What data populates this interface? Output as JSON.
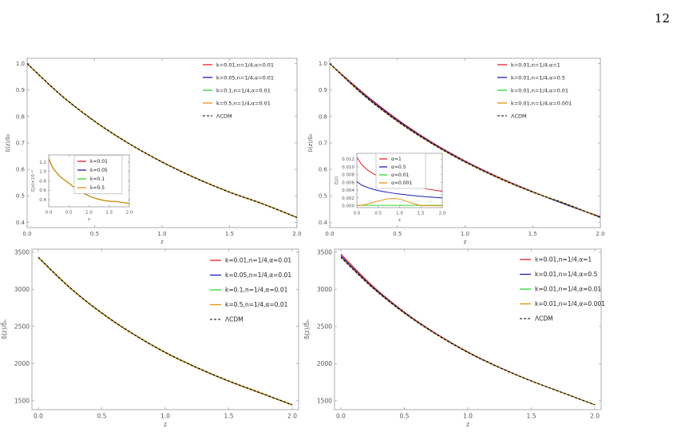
{
  "page_number": "12",
  "colors": {
    "red": "#e8202a",
    "blue": "#1c1cb4",
    "green": "#2fd62f",
    "orange": "#e8920e",
    "lcdm": "#000000",
    "axis": "#999999"
  },
  "chart_data": [
    {
      "type": "line",
      "xlabel": "z",
      "ylabel": "δ(z)/δ₀",
      "xlim": [
        0,
        2
      ],
      "ylim": [
        0.38,
        1.02
      ],
      "xticks": [
        0,
        0.5,
        1,
        1.5,
        2
      ],
      "xtick_labels": [
        "0.0",
        "0.5",
        "1.0",
        "1.5",
        "2.0"
      ],
      "yticks": [
        0.4,
        0.5,
        0.6,
        0.7,
        0.8,
        0.9,
        1.0
      ],
      "ytick_labels": [
        "0.4",
        "0.5",
        "0.6",
        "0.7",
        "0.8",
        "0.9",
        "1.0"
      ],
      "x": [
        0,
        0.25,
        0.5,
        0.75,
        1.0,
        1.25,
        1.5,
        1.75,
        2.0
      ],
      "series": [
        {
          "name": "k=0.01,n=1/4,α=0.01",
          "color": "red",
          "dashed": false,
          "values": [
            1.0,
            0.881,
            0.782,
            0.699,
            0.628,
            0.567,
            0.514,
            0.469,
            0.418
          ]
        },
        {
          "name": "k=0.05,n=1/4,α=0.01",
          "color": "blue",
          "dashed": false,
          "values": [
            1.0,
            0.881,
            0.782,
            0.699,
            0.628,
            0.567,
            0.514,
            0.469,
            0.418
          ]
        },
        {
          "name": "k=0.1,n=1/4,α=0.01",
          "color": "green",
          "dashed": false,
          "values": [
            1.0,
            0.881,
            0.782,
            0.699,
            0.628,
            0.567,
            0.514,
            0.469,
            0.418
          ]
        },
        {
          "name": "k=0.5,n=1/4,α=0.01",
          "color": "orange",
          "dashed": false,
          "values": [
            1.0,
            0.881,
            0.782,
            0.699,
            0.628,
            0.567,
            0.514,
            0.469,
            0.418
          ]
        },
        {
          "name": "ΛCDM",
          "color": "lcdm",
          "dashed": true,
          "values": [
            1.0,
            0.881,
            0.782,
            0.699,
            0.628,
            0.567,
            0.514,
            0.469,
            0.418
          ]
        }
      ],
      "inset": {
        "type": "line",
        "xlabel": "z",
        "ylabel": "ζ(z)×10⁻⁴",
        "xlim": [
          0,
          2
        ],
        "ylim": [
          0.25,
          1.35
        ],
        "xticks": [
          0,
          0.5,
          1,
          1.5,
          2
        ],
        "xtick_labels": [
          "0.0",
          "0.5",
          "1.0",
          "1.5",
          "2.0"
        ],
        "yticks": [
          0.4,
          0.6,
          0.8,
          1.0,
          1.2
        ],
        "ytick_labels": [
          "0.4",
          "0.6",
          "0.8",
          "1.0",
          "1.2"
        ],
        "x": [
          0,
          0.1,
          0.2,
          0.3,
          0.5,
          0.7,
          1.0,
          1.2,
          1.4,
          1.5,
          1.7,
          2.0
        ],
        "series": [
          {
            "name": "k=0.01",
            "color": "red",
            "values": [
              1.28,
              1.08,
              0.97,
              0.88,
              0.75,
              0.62,
              0.48,
              0.42,
              0.38,
              0.37,
              0.36,
              0.32
            ]
          },
          {
            "name": "k=0.05",
            "color": "blue",
            "values": [
              1.28,
              1.08,
              0.97,
              0.88,
              0.75,
              0.62,
              0.48,
              0.42,
              0.38,
              0.37,
              0.36,
              0.32
            ]
          },
          {
            "name": "k=0.1",
            "color": "green",
            "values": [
              1.28,
              1.08,
              0.97,
              0.88,
              0.75,
              0.62,
              0.48,
              0.42,
              0.38,
              0.37,
              0.36,
              0.32
            ]
          },
          {
            "name": "k=0.5",
            "color": "orange",
            "values": [
              1.28,
              1.08,
              0.97,
              0.88,
              0.75,
              0.62,
              0.48,
              0.42,
              0.38,
              0.37,
              0.36,
              0.32
            ]
          }
        ]
      }
    },
    {
      "type": "line",
      "xlabel": "z",
      "ylabel": "δ(z)/δ₀",
      "xlim": [
        0,
        2
      ],
      "ylim": [
        0.38,
        1.02
      ],
      "xticks": [
        0,
        0.5,
        1,
        1.5,
        2
      ],
      "xtick_labels": [
        "0.0",
        "0.5",
        "1.0",
        "1.5",
        "2.0"
      ],
      "yticks": [
        0.4,
        0.5,
        0.6,
        0.7,
        0.8,
        0.9,
        1.0
      ],
      "ytick_labels": [
        "0.4",
        "0.5",
        "0.6",
        "0.7",
        "0.8",
        "0.9",
        "1.0"
      ],
      "x": [
        0,
        0.25,
        0.5,
        0.75,
        1.0,
        1.25,
        1.5,
        1.75,
        2.0
      ],
      "series": [
        {
          "name": "k=0.01,n=1/4,α=1",
          "color": "red",
          "dashed": false,
          "values": [
            1.0,
            0.888,
            0.789,
            0.704,
            0.632,
            0.57,
            0.516,
            0.467,
            0.421
          ]
        },
        {
          "name": "k=0.01,n=1/4,α=0.5",
          "color": "blue",
          "dashed": false,
          "values": [
            1.0,
            0.885,
            0.786,
            0.702,
            0.63,
            0.568,
            0.515,
            0.466,
            0.42
          ]
        },
        {
          "name": "k=0.01,n=1/4,α=0.01",
          "color": "green",
          "dashed": false,
          "values": [
            1.0,
            0.881,
            0.782,
            0.699,
            0.628,
            0.567,
            0.514,
            0.469,
            0.418
          ]
        },
        {
          "name": "k=0.01,n=1/4,α=0.001",
          "color": "orange",
          "dashed": false,
          "values": [
            1.0,
            0.881,
            0.782,
            0.699,
            0.628,
            0.567,
            0.514,
            0.469,
            0.418
          ]
        },
        {
          "name": "ΛCDM",
          "color": "lcdm",
          "dashed": true,
          "values": [
            1.0,
            0.881,
            0.782,
            0.699,
            0.628,
            0.567,
            0.514,
            0.469,
            0.418
          ]
        }
      ],
      "inset": {
        "type": "line",
        "xlabel": "z",
        "ylabel": "ζ(z)",
        "xlim": [
          0,
          2
        ],
        "ylim": [
          -0.0005,
          0.0135
        ],
        "xticks": [
          0,
          0.5,
          1,
          1.5,
          2
        ],
        "xtick_labels": [
          "0.0",
          "0.5",
          "1.0",
          "1.5",
          "2.0"
        ],
        "yticks": [
          0.0,
          0.002,
          0.004,
          0.006,
          0.008,
          0.01,
          0.012
        ],
        "ytick_labels": [
          "0.000",
          "0.002",
          "0.004",
          "0.006",
          "0.008",
          "0.010",
          "0.012"
        ],
        "x": [
          0,
          0.1,
          0.2,
          0.3,
          0.5,
          0.75,
          1.0,
          1.25,
          1.5,
          1.75,
          2.0
        ],
        "series": [
          {
            "name": "α=1",
            "color": "red",
            "values": [
              0.0125,
              0.0108,
              0.0097,
              0.0088,
              0.0076,
              0.0066,
              0.0058,
              0.0051,
              0.0046,
              0.0041,
              0.0037
            ]
          },
          {
            "name": "α=0.5",
            "color": "blue",
            "values": [
              0.0062,
              0.0054,
              0.0049,
              0.0045,
              0.0039,
              0.0034,
              0.003,
              0.0027,
              0.0024,
              0.0022,
              0.002
            ]
          },
          {
            "name": "α=0.01",
            "color": "green",
            "values": [
              0.0001,
              0.0001,
              0.0001,
              0.0001,
              0.0001,
              0.0001,
              0.0001,
              0.0001,
              0.0001,
              0.0001,
              0.0001
            ]
          },
          {
            "name": "α=0.001",
            "color": "orange",
            "values": [
              0.0,
              0.0001,
              0.0003,
              0.0006,
              0.0012,
              0.0018,
              0.0017,
              0.0008,
              0.0001,
              0.0,
              0.0
            ]
          }
        ]
      }
    },
    {
      "type": "line",
      "xlabel": "z",
      "ylabel": "δ(z)/δ̄ₙ",
      "xlim": [
        -0.05,
        2.05
      ],
      "ylim": [
        1380,
        3540
      ],
      "xticks": [
        0,
        0.5,
        1,
        1.5,
        2
      ],
      "xtick_labels": [
        "0.0",
        "0.5",
        "1.0",
        "1.5",
        "2.0"
      ],
      "yticks": [
        1500,
        2000,
        2500,
        3000,
        3500
      ],
      "ytick_labels": [
        "1500",
        "2000",
        "2500",
        "3000",
        "3500"
      ],
      "x": [
        0,
        0.25,
        0.5,
        0.75,
        1.0,
        1.25,
        1.5,
        1.75,
        2.0
      ],
      "series": [
        {
          "name": "k=0.01,n=1/4,α=0.01",
          "color": "red",
          "dashed": false,
          "values": [
            3430,
            3020,
            2680,
            2395,
            2150,
            1945,
            1765,
            1605,
            1445
          ]
        },
        {
          "name": "k=0.05,n=1/4,α=0.01",
          "color": "blue",
          "dashed": false,
          "values": [
            3430,
            3020,
            2680,
            2395,
            2150,
            1945,
            1765,
            1605,
            1445
          ]
        },
        {
          "name": "k=0.1,n=1/4,α=0.01",
          "color": "green",
          "dashed": false,
          "values": [
            3430,
            3020,
            2680,
            2395,
            2150,
            1945,
            1765,
            1605,
            1445
          ]
        },
        {
          "name": "k=0.5,n=1/4,α=0.01",
          "color": "orange",
          "dashed": false,
          "values": [
            3430,
            3020,
            2680,
            2395,
            2150,
            1945,
            1765,
            1605,
            1445
          ]
        },
        {
          "name": "ΛCDM",
          "color": "lcdm",
          "dashed": true,
          "values": [
            3430,
            3020,
            2680,
            2395,
            2150,
            1945,
            1765,
            1605,
            1445
          ]
        }
      ]
    },
    {
      "type": "line",
      "xlabel": "z",
      "ylabel": "δ(z)/δ̄ₙ",
      "xlim": [
        -0.05,
        2.05
      ],
      "ylim": [
        1380,
        3540
      ],
      "xticks": [
        0,
        0.5,
        1,
        1.5,
        2
      ],
      "xtick_labels": [
        "0.0",
        "0.5",
        "1.0",
        "1.5",
        "2.0"
      ],
      "yticks": [
        1500,
        2000,
        2500,
        3000,
        3500
      ],
      "ytick_labels": [
        "1500",
        "2000",
        "2500",
        "3000",
        "3500"
      ],
      "x": [
        0,
        0.25,
        0.5,
        0.75,
        1.0,
        1.25,
        1.5,
        1.75,
        2.0
      ],
      "series": [
        {
          "name": "k=0.01,n=1/4,α=1",
          "color": "red",
          "dashed": false,
          "values": [
            3475,
            3045,
            2695,
            2405,
            2158,
            1950,
            1768,
            1607,
            1446
          ]
        },
        {
          "name": "k=0.01,n=1/4,α=0.5",
          "color": "blue",
          "dashed": false,
          "values": [
            3452,
            3032,
            2688,
            2400,
            2154,
            1948,
            1767,
            1606,
            1446
          ]
        },
        {
          "name": "k=0.01,n=1/4,α=0.01",
          "color": "green",
          "dashed": false,
          "values": [
            3430,
            3020,
            2680,
            2395,
            2150,
            1945,
            1765,
            1605,
            1445
          ]
        },
        {
          "name": "k=0.01,n=1/4,α=0.001",
          "color": "orange",
          "dashed": false,
          "values": [
            3430,
            3020,
            2680,
            2395,
            2150,
            1945,
            1765,
            1605,
            1445
          ]
        },
        {
          "name": "ΛCDM",
          "color": "lcdm",
          "dashed": true,
          "values": [
            3430,
            3020,
            2680,
            2395,
            2150,
            1945,
            1765,
            1605,
            1445
          ]
        }
      ]
    }
  ]
}
